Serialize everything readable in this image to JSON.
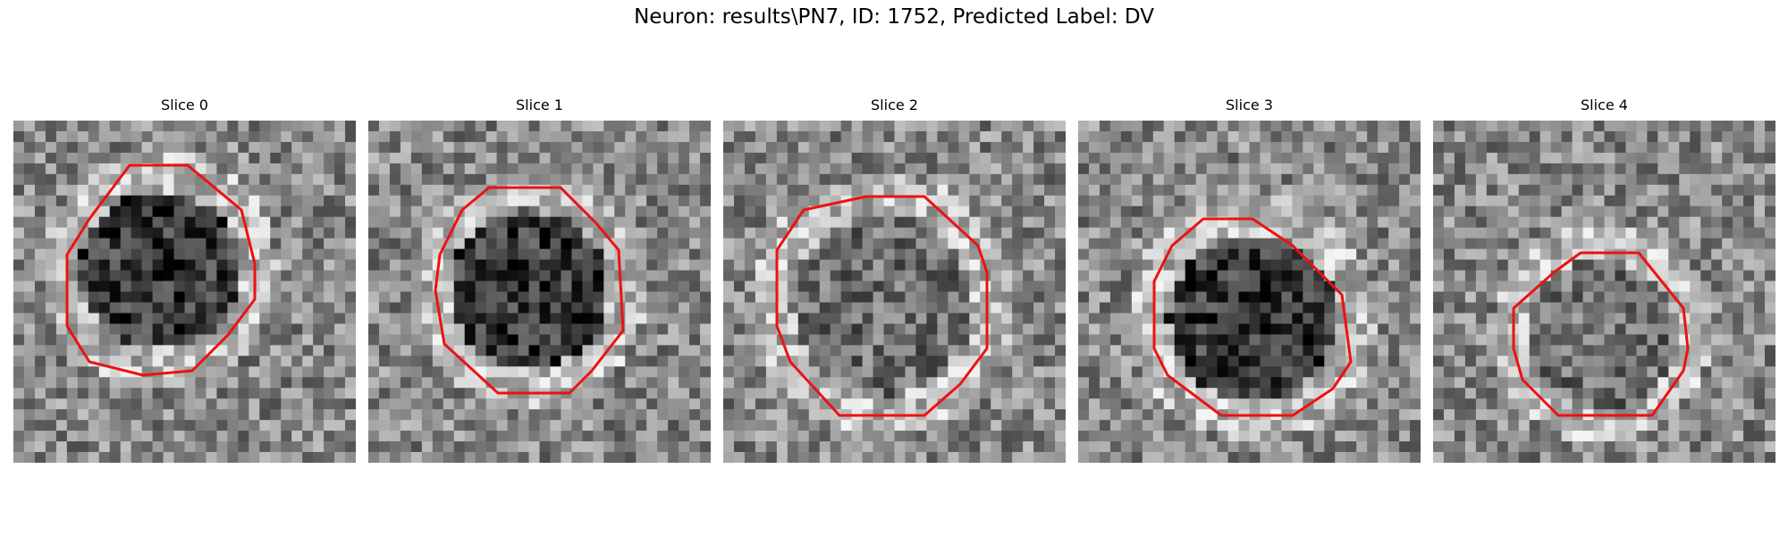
{
  "figure": {
    "title": "Neuron: results\\PN7, ID: 1752, Predicted Label: DV",
    "contour_color": "#ee1111",
    "image_colormap": "grayscale",
    "slices": [
      {
        "title": "Slice 0",
        "soma": "dark",
        "seed": 11
      },
      {
        "title": "Slice 1",
        "soma": "dark",
        "seed": 23
      },
      {
        "title": "Slice 2",
        "soma": "mid",
        "seed": 37
      },
      {
        "title": "Slice 3",
        "soma": "dark",
        "seed": 41
      },
      {
        "title": "Slice 4",
        "soma": "mid",
        "seed": 59
      }
    ]
  }
}
